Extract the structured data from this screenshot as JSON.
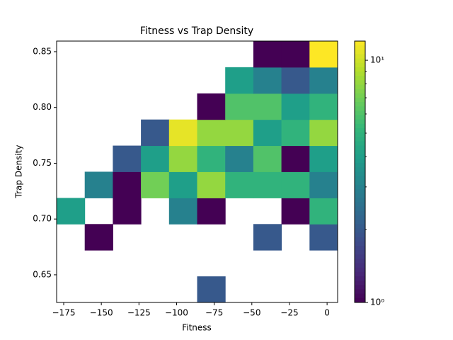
{
  "chart_data": {
    "type": "hist2d",
    "title": "Fitness vs Trap Density",
    "x_label": "Fitness",
    "y_label": "Trap Density",
    "xbins": [
      -179.7,
      -161.03,
      -142.36,
      -123.69,
      -105.02,
      -86.35,
      -67.68,
      -49.01,
      -30.34,
      -11.67,
      7.0
    ],
    "ybins": [
      0.6252,
      0.6486,
      0.6721,
      0.6955,
      0.7189,
      0.7424,
      0.7658,
      0.7892,
      0.8126,
      0.8361,
      0.8595
    ],
    "counts": [
      [
        null,
        null,
        null,
        null,
        null,
        2,
        null,
        null,
        null,
        null
      ],
      [
        null,
        null,
        null,
        null,
        null,
        null,
        null,
        null,
        null,
        null
      ],
      [
        null,
        1,
        null,
        null,
        null,
        null,
        null,
        2,
        null,
        2
      ],
      [
        4,
        null,
        1,
        null,
        3,
        1,
        null,
        null,
        1,
        5
      ],
      [
        null,
        3,
        1,
        7,
        4,
        8,
        5,
        5,
        5,
        3
      ],
      [
        null,
        null,
        2,
        4,
        8,
        5,
        3,
        6,
        1,
        4
      ],
      [
        null,
        null,
        null,
        2,
        11,
        8,
        8,
        4,
        5,
        8
      ],
      [
        null,
        null,
        null,
        null,
        null,
        1,
        6,
        6,
        4,
        5
      ],
      [
        null,
        null,
        null,
        null,
        null,
        null,
        4,
        3,
        2,
        3
      ],
      [
        null,
        null,
        null,
        null,
        null,
        null,
        null,
        1,
        1,
        12
      ]
    ],
    "xlim": [
      -179.7,
      7.0
    ],
    "ylim": [
      0.6252,
      0.8595
    ],
    "xticks": [
      {
        "value": -175,
        "label": "−175"
      },
      {
        "value": -150,
        "label": "−150"
      },
      {
        "value": -125,
        "label": "−125"
      },
      {
        "value": -100,
        "label": "−100"
      },
      {
        "value": -75,
        "label": "−75"
      },
      {
        "value": -50,
        "label": "−50"
      },
      {
        "value": -25,
        "label": "−25"
      },
      0
    ],
    "yticks": [
      0.65,
      {
        "value": 0.7,
        "label": "0.70"
      },
      0.75,
      {
        "value": 0.8,
        "label": "0.80"
      },
      0.85
    ],
    "color_scale": "log",
    "clim": [
      1,
      12
    ],
    "cticks": [
      {
        "value": 1,
        "label": "10⁰"
      },
      {
        "value": 10,
        "label": "10¹"
      }
    ],
    "cticks_minor": [
      2,
      3,
      4,
      5,
      6,
      7,
      8,
      9
    ]
  }
}
